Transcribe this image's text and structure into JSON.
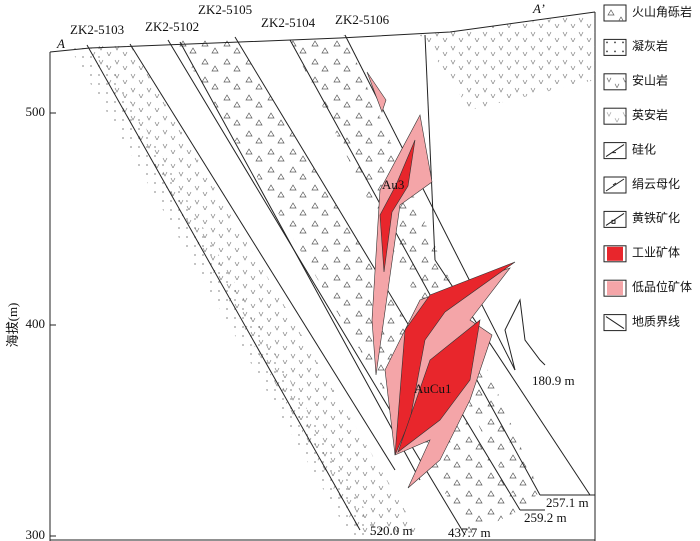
{
  "section": {
    "start_label": "A",
    "end_label": "A’",
    "drillholes": [
      {
        "name": "ZK2-5103",
        "depth": "520.0 m"
      },
      {
        "name": "ZK2-5102",
        "depth": "437.7 m"
      },
      {
        "name": "ZK2-5105",
        "depth": "259.2 m"
      },
      {
        "name": "ZK2-5104",
        "depth": "257.1 m"
      },
      {
        "name": "ZK2-5106",
        "depth": "180.9 m"
      }
    ],
    "orebodies": [
      "Au3",
      "AuCu1"
    ]
  },
  "axis": {
    "label": "海拔(m)",
    "ticks": [
      "500",
      "400",
      "300"
    ]
  },
  "legend": [
    "火山角砾岩",
    "凝灰岩",
    "安山岩",
    "英安岩",
    "硅化",
    "绢云母化",
    "黄铁矿化",
    "工业矿体",
    "低品位矿体",
    "地质界线"
  ]
}
